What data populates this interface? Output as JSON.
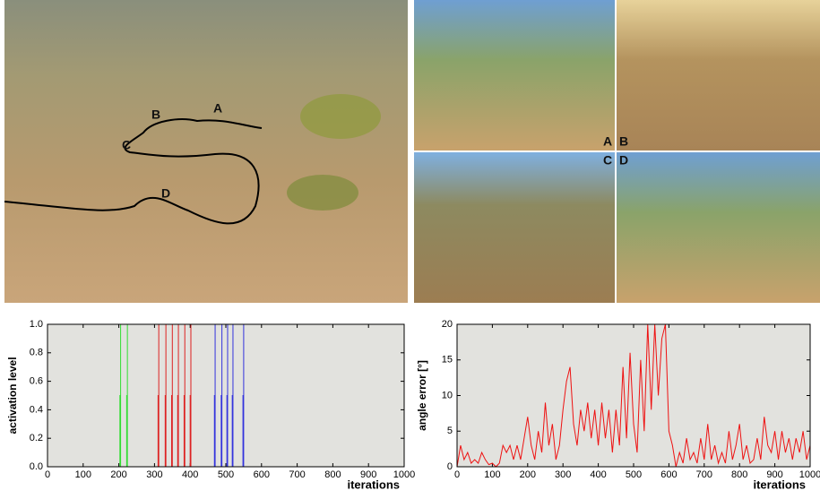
{
  "photo_labels": {
    "trajectory": [
      "A",
      "B",
      "C",
      "D"
    ],
    "panels": [
      "A",
      "B",
      "C",
      "D"
    ]
  },
  "chart_data": [
    {
      "type": "line",
      "xlabel": "iterations",
      "ylabel": "activation level",
      "xlim": [
        0,
        1000
      ],
      "xticks": [
        0,
        100,
        200,
        300,
        400,
        500,
        600,
        700,
        800,
        900,
        1000
      ],
      "ylim": [
        0,
        1
      ],
      "yticks": [
        {
          "value": 0,
          "label": "0.0"
        },
        {
          "value": 0.2,
          "label": "0.2"
        },
        {
          "value": 0.4,
          "label": "0.4"
        },
        {
          "value": 0.6,
          "label": "0.6"
        },
        {
          "value": 0.8,
          "label": "0.8"
        },
        {
          "value": 1,
          "label": "1.0"
        }
      ],
      "grid": false,
      "series": [
        {
          "color": "#33dd33",
          "x": [
            203,
            203,
            205,
            205,
            205,
            210,
            222,
            222,
            224,
            224,
            224
          ],
          "values": [
            0,
            0.5,
            0.5,
            1,
            0,
            null,
            0,
            0.5,
            0.5,
            1,
            0
          ]
        },
        {
          "color": "#dd2222",
          "x": [
            310,
            310,
            312,
            312,
            312,
            320,
            330,
            330,
            332,
            332,
            332,
            340,
            348,
            348,
            350,
            350,
            350,
            355,
            365,
            365,
            367,
            367,
            367,
            375,
            383,
            383,
            385,
            385,
            385,
            392,
            400,
            400,
            402,
            402,
            402
          ],
          "values": [
            0,
            0.5,
            0.5,
            1,
            0,
            null,
            0,
            0.5,
            0.5,
            1,
            0,
            null,
            0,
            0.5,
            0.5,
            1,
            0,
            null,
            0,
            0.5,
            0.5,
            1,
            0,
            null,
            0,
            0.5,
            0.5,
            1,
            0,
            null,
            0,
            0.5,
            0.5,
            1,
            0
          ]
        },
        {
          "color": "#3333dd",
          "x": [
            468,
            468,
            470,
            470,
            470,
            478,
            487,
            487,
            489,
            489,
            489,
            495,
            503,
            503,
            505,
            505,
            505,
            510,
            518,
            518,
            520,
            520,
            520,
            530,
            548,
            548,
            550,
            550,
            550
          ],
          "values": [
            0,
            0.5,
            0.5,
            1,
            0,
            null,
            0,
            0.5,
            0.5,
            1,
            0,
            null,
            0,
            0.5,
            0.5,
            1,
            0,
            null,
            0,
            0.5,
            0.5,
            1,
            0,
            null,
            0,
            0.5,
            0.5,
            1,
            0
          ]
        }
      ]
    },
    {
      "type": "line",
      "xlabel": "iterations",
      "ylabel": "angle error [°]",
      "xlim": [
        0,
        1000
      ],
      "xticks": [
        0,
        100,
        200,
        300,
        400,
        500,
        600,
        700,
        800,
        900,
        1000
      ],
      "ylim": [
        0,
        20
      ],
      "yticks": [
        0,
        5,
        10,
        15,
        20
      ],
      "grid": false,
      "series": [
        {
          "color": "#ee1111",
          "x": [
            0,
            10,
            20,
            30,
            40,
            50,
            60,
            70,
            80,
            90,
            100,
            110,
            120,
            130,
            140,
            150,
            160,
            170,
            180,
            190,
            200,
            210,
            220,
            230,
            240,
            250,
            260,
            270,
            280,
            290,
            300,
            310,
            320,
            330,
            340,
            350,
            360,
            370,
            380,
            390,
            400,
            410,
            420,
            430,
            440,
            450,
            460,
            470,
            480,
            490,
            500,
            510,
            520,
            530,
            540,
            550,
            560,
            570,
            580,
            590,
            600,
            610,
            620,
            630,
            640,
            650,
            660,
            670,
            680,
            690,
            700,
            710,
            720,
            730,
            740,
            750,
            760,
            770,
            780,
            790,
            800,
            810,
            820,
            830,
            840,
            850,
            860,
            870,
            880,
            890,
            900,
            910,
            920,
            930,
            940,
            950,
            960,
            970,
            980,
            990,
            1000
          ],
          "values": [
            0,
            3,
            1,
            2,
            0.5,
            1,
            0.5,
            2,
            1,
            0.3,
            0.5,
            0,
            0.5,
            3,
            2,
            3,
            1,
            3,
            1,
            4,
            7,
            3,
            1,
            5,
            2,
            9,
            3,
            6,
            1,
            3,
            8,
            12,
            14,
            6,
            3,
            8,
            5,
            9,
            4,
            8,
            3,
            9,
            4,
            8,
            2,
            8,
            3,
            14,
            4,
            16,
            6,
            2,
            15,
            5,
            20,
            8,
            20,
            10,
            18,
            20,
            5,
            3,
            0,
            2,
            0.5,
            4,
            1,
            2,
            0.5,
            4,
            1,
            6,
            1,
            3,
            0.5,
            2,
            0.5,
            5,
            1,
            3,
            6,
            1,
            3,
            0.5,
            1,
            4,
            1,
            7,
            3,
            2,
            5,
            1,
            5,
            2,
            4,
            1,
            4,
            2,
            5,
            1,
            3
          ]
        }
      ]
    }
  ]
}
